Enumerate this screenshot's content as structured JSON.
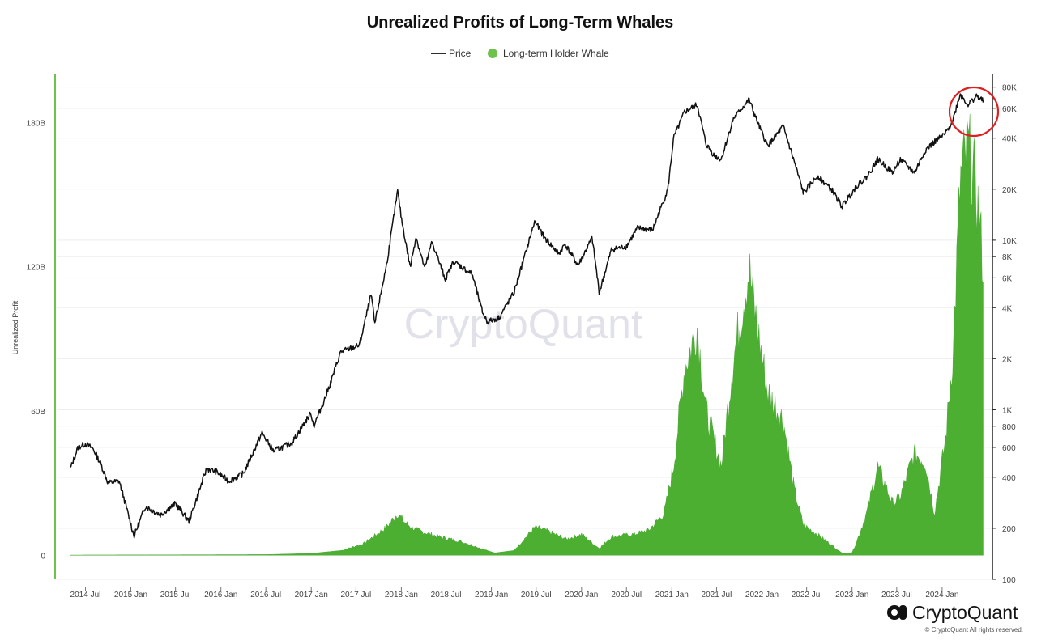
{
  "title": "Unrealized Profits of Long-Term Whales",
  "legend": {
    "price_label": "Price",
    "whale_label": "Long-term Holder Whale"
  },
  "watermark": "CryptoQuant",
  "brand": {
    "name": "CryptoQuant",
    "copyright": "© CryptoQuant All rights reserved."
  },
  "colors": {
    "price": "#111111",
    "whale": "#4caf32",
    "left_axis": "#6cc24a",
    "highlight_circle": "#e02020"
  },
  "chart_data": {
    "type": "area",
    "title": "Unrealized Profits of Long-Term Whales",
    "ylabel_left": "Unrealized Profit",
    "y_left_ticks": [
      "0",
      "60B",
      "120B",
      "180B"
    ],
    "y_left_range_billions": [
      -10,
      200
    ],
    "y_right_scale": "log",
    "y_right_ticks": [
      "100",
      "200",
      "400",
      "600",
      "800",
      "1K",
      "2K",
      "4K",
      "6K",
      "8K",
      "10K",
      "20K",
      "40K",
      "60K",
      "80K"
    ],
    "y_right_tick_values": [
      100,
      200,
      400,
      600,
      800,
      1000,
      2000,
      4000,
      6000,
      8000,
      10000,
      20000,
      40000,
      60000,
      80000
    ],
    "y_right_range": [
      100,
      95000
    ],
    "x_range": [
      "2014-04-15",
      "2024-06-20"
    ],
    "x_ticks": [
      "2014 Jul",
      "2015 Jan",
      "2015 Jul",
      "2016 Jan",
      "2016 Jul",
      "2017 Jan",
      "2017 Jul",
      "2018 Jan",
      "2018 Jul",
      "2019 Jan",
      "2019 Jul",
      "2020 Jan",
      "2020 Jul",
      "2021 Jan",
      "2021 Jul",
      "2022 Jan",
      "2022 Jul",
      "2023 Jan",
      "2023 Jul",
      "2024 Jan"
    ],
    "x_tick_dates": [
      "2014-07-01",
      "2015-01-01",
      "2015-07-01",
      "2016-01-01",
      "2016-07-01",
      "2017-01-01",
      "2017-07-01",
      "2018-01-01",
      "2018-07-01",
      "2019-01-01",
      "2019-07-01",
      "2020-01-01",
      "2020-07-01",
      "2021-01-01",
      "2021-07-01",
      "2022-01-01",
      "2022-07-01",
      "2023-01-01",
      "2023-07-01",
      "2024-01-01"
    ],
    "series": [
      {
        "name": "Price",
        "axis": "right",
        "style": "line",
        "x": [
          "2014-05-01",
          "2014-06-01",
          "2014-07-01",
          "2014-08-01",
          "2014-09-01",
          "2014-10-01",
          "2014-11-15",
          "2015-01-14",
          "2015-03-01",
          "2015-05-01",
          "2015-07-01",
          "2015-08-25",
          "2015-11-04",
          "2015-12-15",
          "2016-02-01",
          "2016-04-01",
          "2016-06-15",
          "2016-08-01",
          "2016-10-15",
          "2016-12-31",
          "2017-01-11",
          "2017-03-01",
          "2017-05-01",
          "2017-07-15",
          "2017-09-01",
          "2017-09-15",
          "2017-11-01",
          "2017-12-17",
          "2018-01-01",
          "2018-02-06",
          "2018-03-01",
          "2018-04-06",
          "2018-05-05",
          "2018-06-28",
          "2018-08-01",
          "2018-10-15",
          "2018-11-25",
          "2018-12-15",
          "2019-02-01",
          "2019-04-02",
          "2019-05-15",
          "2019-06-26",
          "2019-08-01",
          "2019-10-01",
          "2019-10-26",
          "2019-12-18",
          "2020-02-13",
          "2020-03-13",
          "2020-05-01",
          "2020-07-01",
          "2020-08-15",
          "2020-10-15",
          "2020-12-16",
          "2021-01-08",
          "2021-02-21",
          "2021-04-14",
          "2021-05-19",
          "2021-06-22",
          "2021-07-20",
          "2021-09-07",
          "2021-11-10",
          "2021-12-20",
          "2022-01-24",
          "2022-03-28",
          "2022-05-12",
          "2022-06-18",
          "2022-08-14",
          "2022-10-15",
          "2022-11-21",
          "2023-01-20",
          "2023-03-01",
          "2023-04-15",
          "2023-06-15",
          "2023-07-15",
          "2023-09-11",
          "2023-10-25",
          "2023-12-01",
          "2024-01-15",
          "2024-02-15",
          "2024-03-14",
          "2024-04-15",
          "2024-05-20",
          "2024-06-15"
        ],
        "values": [
          450,
          600,
          630,
          590,
          480,
          370,
          380,
          180,
          270,
          240,
          280,
          220,
          450,
          430,
          380,
          420,
          730,
          570,
          640,
          960,
          800,
          1200,
          2200,
          2400,
          4800,
          3200,
          7000,
          19500,
          13500,
          6900,
          10500,
          6800,
          9800,
          5900,
          7500,
          6300,
          3800,
          3300,
          3500,
          4900,
          8000,
          13000,
          10500,
          8300,
          9500,
          7100,
          10300,
          4900,
          8800,
          9200,
          11800,
          11500,
          20000,
          40000,
          57000,
          63000,
          37000,
          31500,
          30000,
          52000,
          67500,
          47000,
          36000,
          47000,
          29000,
          19000,
          24000,
          19500,
          15800,
          21000,
          23500,
          30000,
          25000,
          30000,
          25000,
          34000,
          38000,
          42500,
          52000,
          73000,
          63000,
          71000,
          66000
        ]
      },
      {
        "name": "Long-term Holder Whale",
        "axis": "left",
        "style": "area",
        "unit": "B",
        "x": [
          "2014-05-01",
          "2016-07-01",
          "2017-01-01",
          "2017-05-01",
          "2017-08-01",
          "2017-11-01",
          "2017-12-17",
          "2018-01-15",
          "2018-03-01",
          "2018-06-01",
          "2018-09-01",
          "2018-12-15",
          "2019-01-15",
          "2019-04-01",
          "2019-06-26",
          "2019-08-01",
          "2019-11-01",
          "2020-01-01",
          "2020-03-13",
          "2020-05-01",
          "2020-08-01",
          "2020-10-01",
          "2020-12-01",
          "2021-01-08",
          "2021-02-21",
          "2021-04-14",
          "2021-05-19",
          "2021-07-20",
          "2021-09-07",
          "2021-11-10",
          "2021-12-01",
          "2022-01-24",
          "2022-03-28",
          "2022-05-12",
          "2022-06-18",
          "2022-08-14",
          "2022-10-15",
          "2022-11-21",
          "2023-01-01",
          "2023-01-20",
          "2023-03-01",
          "2023-04-15",
          "2023-06-15",
          "2023-07-15",
          "2023-09-11",
          "2023-10-25",
          "2023-12-01",
          "2024-01-15",
          "2024-02-15",
          "2024-03-14",
          "2024-04-15",
          "2024-05-20",
          "2024-06-15"
        ],
        "values": [
          0.1,
          0.3,
          0.8,
          2,
          5,
          12,
          18,
          14,
          11,
          8,
          6,
          2,
          1,
          2,
          12,
          11,
          7,
          9,
          3,
          8,
          9,
          11,
          18,
          38,
          80,
          98,
          62,
          38,
          84,
          123,
          106,
          70,
          58,
          28,
          13,
          9,
          4,
          1,
          1,
          6,
          18,
          38,
          22,
          25,
          44,
          40,
          18,
          50,
          88,
          160,
          175,
          155,
          125
        ]
      }
    ]
  }
}
